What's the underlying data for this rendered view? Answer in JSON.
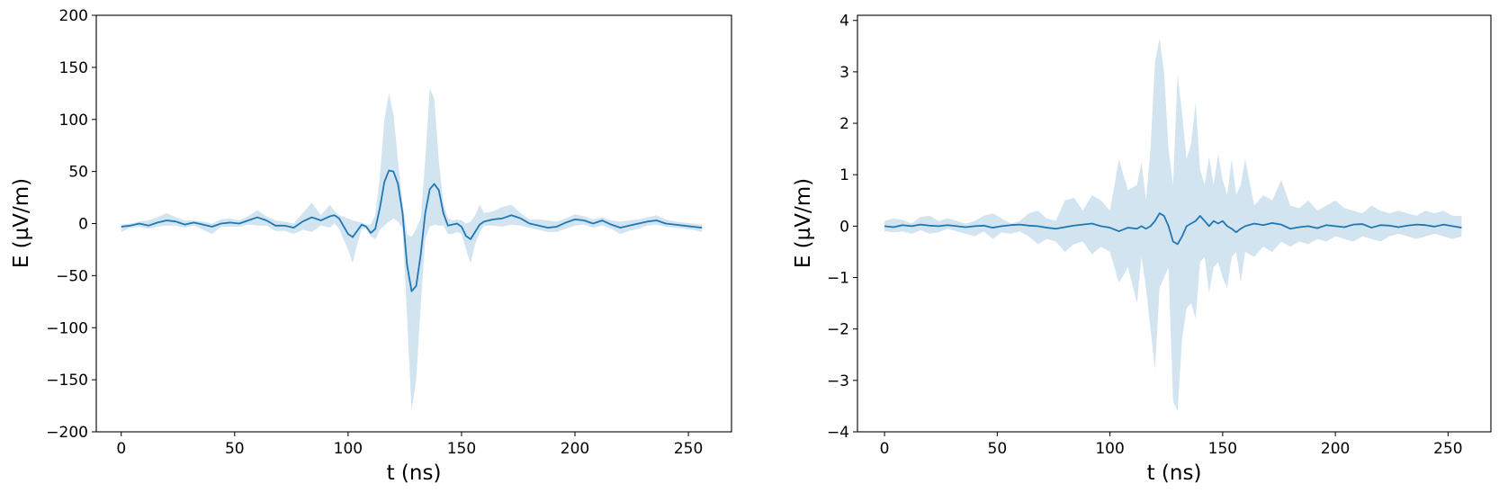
{
  "chart_data": [
    {
      "type": "line",
      "xlabel": "t (ns)",
      "ylabel": "E (µV/m)",
      "xlim": [
        -11,
        269
      ],
      "ylim": [
        -200,
        200
      ],
      "xticks": [
        0,
        50,
        100,
        150,
        200,
        250
      ],
      "yticks": [
        -200,
        -150,
        -100,
        -50,
        0,
        50,
        100,
        150,
        200
      ],
      "xtick_labels": [
        "0",
        "50",
        "100",
        "150",
        "200",
        "250"
      ],
      "ytick_labels": [
        "−200",
        "−150",
        "−100",
        "−50",
        "0",
        "50",
        "100",
        "150",
        "200"
      ],
      "grid": false,
      "line_color": "#1f77b4",
      "band_color": "#1f77b4",
      "series": [
        {
          "x": [
            0,
            4,
            8,
            12,
            16,
            20,
            24,
            28,
            32,
            36,
            40,
            44,
            48,
            52,
            56,
            60,
            64,
            68,
            72,
            76,
            80,
            84,
            88,
            92,
            94,
            96,
            100,
            102,
            104,
            106,
            108,
            110,
            112,
            114,
            116,
            118,
            120,
            122,
            124,
            126,
            128,
            130,
            132,
            134,
            136,
            138,
            140,
            142,
            144,
            146,
            148,
            150,
            152,
            154,
            156,
            158,
            160,
            164,
            168,
            172,
            176,
            180,
            184,
            188,
            192,
            196,
            200,
            204,
            208,
            212,
            216,
            220,
            224,
            228,
            232,
            236,
            240,
            244,
            248,
            252,
            256
          ],
          "y": [
            -3,
            -2,
            0,
            -2,
            1,
            3,
            2,
            -1,
            1,
            -1,
            -3,
            0,
            1,
            0,
            3,
            6,
            3,
            -2,
            -2,
            -4,
            2,
            6,
            3,
            7,
            8,
            5,
            -10,
            -13,
            -7,
            -1,
            -3,
            -9,
            -5,
            15,
            40,
            51,
            50,
            38,
            10,
            -40,
            -65,
            -60,
            -30,
            10,
            33,
            38,
            32,
            10,
            -2,
            -1,
            0,
            -3,
            -12,
            -15,
            -8,
            -1,
            2,
            4,
            5,
            8,
            5,
            0,
            -2,
            -4,
            -3,
            1,
            4,
            3,
            0,
            3,
            -1,
            -4,
            -2,
            0,
            2,
            3,
            0,
            -1,
            -2,
            -3,
            -4
          ],
          "upper": [
            -1,
            0,
            2,
            3,
            6,
            10,
            6,
            3,
            3,
            2,
            0,
            4,
            5,
            3,
            7,
            13,
            7,
            3,
            2,
            0,
            10,
            20,
            8,
            18,
            12,
            8,
            5,
            3,
            2,
            1,
            -1,
            -1,
            8,
            45,
            100,
            125,
            105,
            60,
            20,
            -10,
            -13,
            -5,
            5,
            60,
            130,
            120,
            60,
            20,
            5,
            3,
            4,
            3,
            0,
            2,
            8,
            18,
            10,
            12,
            16,
            18,
            10,
            4,
            4,
            3,
            2,
            5,
            9,
            7,
            4,
            6,
            3,
            2,
            3,
            4,
            6,
            8,
            4,
            2,
            1,
            0,
            -1
          ],
          "lower": [
            -8,
            -4,
            -3,
            -5,
            -3,
            -2,
            -2,
            -4,
            -2,
            -6,
            -10,
            -3,
            -3,
            -3,
            -1,
            -2,
            -2,
            -7,
            -7,
            -10,
            -6,
            -8,
            -2,
            -4,
            0,
            -5,
            -25,
            -38,
            -20,
            -5,
            -5,
            -12,
            -15,
            -6,
            -2,
            2,
            5,
            2,
            -5,
            -90,
            -180,
            -150,
            -80,
            -15,
            -3,
            -1,
            -2,
            -2,
            -10,
            -10,
            -8,
            -10,
            -25,
            -38,
            -20,
            -8,
            -2,
            -2,
            -3,
            -1,
            -2,
            -4,
            -6,
            -8,
            -8,
            -5,
            -2,
            -1,
            -4,
            -2,
            -5,
            -10,
            -7,
            -5,
            -2,
            -1,
            -3,
            -4,
            -5,
            -6,
            -8
          ]
        }
      ]
    },
    {
      "type": "line",
      "xlabel": "t (ns)",
      "ylabel": "E (µV/m)",
      "xlim": [
        -12,
        269
      ],
      "ylim": [
        -4,
        4.1
      ],
      "xticks": [
        0,
        50,
        100,
        150,
        200,
        250
      ],
      "yticks": [
        -4,
        -3,
        -2,
        -1,
        0,
        1,
        2,
        3,
        4
      ],
      "xtick_labels": [
        "0",
        "50",
        "100",
        "150",
        "200",
        "250"
      ],
      "ytick_labels": [
        "−4",
        "−3",
        "−2",
        "−1",
        "0",
        "1",
        "2",
        "3",
        "4"
      ],
      "grid": false,
      "line_color": "#1f77b4",
      "band_color": "#1f77b4",
      "series": [
        {
          "x": [
            0,
            4,
            8,
            12,
            16,
            20,
            24,
            28,
            32,
            36,
            40,
            44,
            48,
            52,
            56,
            60,
            64,
            68,
            72,
            76,
            80,
            84,
            88,
            92,
            96,
            100,
            104,
            108,
            112,
            114,
            116,
            118,
            120,
            122,
            124,
            126,
            128,
            130,
            132,
            134,
            136,
            138,
            140,
            142,
            144,
            146,
            148,
            150,
            152,
            154,
            156,
            158,
            160,
            164,
            168,
            172,
            176,
            180,
            184,
            188,
            192,
            196,
            200,
            204,
            208,
            212,
            216,
            220,
            224,
            228,
            232,
            236,
            240,
            244,
            248,
            252,
            256
          ],
          "y": [
            0,
            -0.02,
            0.02,
            0,
            0.03,
            0.01,
            0,
            0.02,
            0,
            -0.02,
            0,
            0.01,
            -0.03,
            0,
            0.02,
            0.03,
            0.01,
            0,
            -0.03,
            -0.05,
            -0.02,
            0.01,
            0.03,
            0.05,
            0,
            -0.03,
            -0.1,
            -0.03,
            -0.05,
            0,
            -0.05,
            0,
            0.1,
            0.25,
            0.2,
            0,
            -0.3,
            -0.35,
            -0.2,
            0,
            0.05,
            0.1,
            0.2,
            0.1,
            0,
            0.1,
            0.05,
            0.1,
            0,
            -0.05,
            -0.12,
            -0.05,
            0,
            0.05,
            0.02,
            0.06,
            0.03,
            -0.05,
            -0.02,
            0,
            -0.04,
            0.02,
            0,
            -0.02,
            0.03,
            0.04,
            -0.03,
            0.02,
            0.01,
            -0.02,
            0.01,
            0.03,
            0.02,
            -0.01,
            0.03,
            0,
            -0.03
          ],
          "upper": [
            0.1,
            0.15,
            0.12,
            0.05,
            0.18,
            0.2,
            0.1,
            0.15,
            0.1,
            0.05,
            0.1,
            0.2,
            0.25,
            0.15,
            0.05,
            0.1,
            0.25,
            0.3,
            0.15,
            0.1,
            0.5,
            0.55,
            0.3,
            0.6,
            0.5,
            0.3,
            1.3,
            0.7,
            0.8,
            1.25,
            0.5,
            1.5,
            3.2,
            3.65,
            3.0,
            1.5,
            0.8,
            2.95,
            2.2,
            1.3,
            1.6,
            2.4,
            1.1,
            0.8,
            1.35,
            0.8,
            1.4,
            0.9,
            0.6,
            1.3,
            0.6,
            0.8,
            1.3,
            0.4,
            0.6,
            0.5,
            0.9,
            0.4,
            0.35,
            0.5,
            0.3,
            0.4,
            0.5,
            0.35,
            0.3,
            0.25,
            0.4,
            0.3,
            0.25,
            0.3,
            0.25,
            0.2,
            0.3,
            0.25,
            0.3,
            0.2,
            0.2
          ],
          "lower": [
            -0.1,
            -0.12,
            -0.1,
            -0.15,
            -0.08,
            -0.15,
            -0.12,
            -0.05,
            -0.1,
            -0.15,
            -0.2,
            -0.1,
            -0.25,
            -0.12,
            -0.15,
            -0.1,
            -0.2,
            -0.35,
            -0.25,
            -0.3,
            -0.5,
            -0.35,
            -0.3,
            -0.55,
            -0.4,
            -0.5,
            -1.1,
            -0.8,
            -1.5,
            -0.6,
            -1.2,
            -2.0,
            -2.8,
            -1.2,
            -1.0,
            -0.8,
            -3.4,
            -3.6,
            -2.2,
            -1.6,
            -1.5,
            -1.8,
            -0.7,
            -0.6,
            -1.3,
            -0.8,
            -0.7,
            -1.0,
            -1.2,
            -0.6,
            -0.5,
            -1.1,
            -0.5,
            -0.6,
            -0.4,
            -0.5,
            -0.3,
            -0.4,
            -0.3,
            -0.35,
            -0.25,
            -0.3,
            -0.2,
            -0.25,
            -0.3,
            -0.2,
            -0.25,
            -0.3,
            -0.2,
            -0.15,
            -0.2,
            -0.25,
            -0.2,
            -0.15,
            -0.2,
            -0.25,
            -0.2
          ]
        }
      ]
    }
  ]
}
